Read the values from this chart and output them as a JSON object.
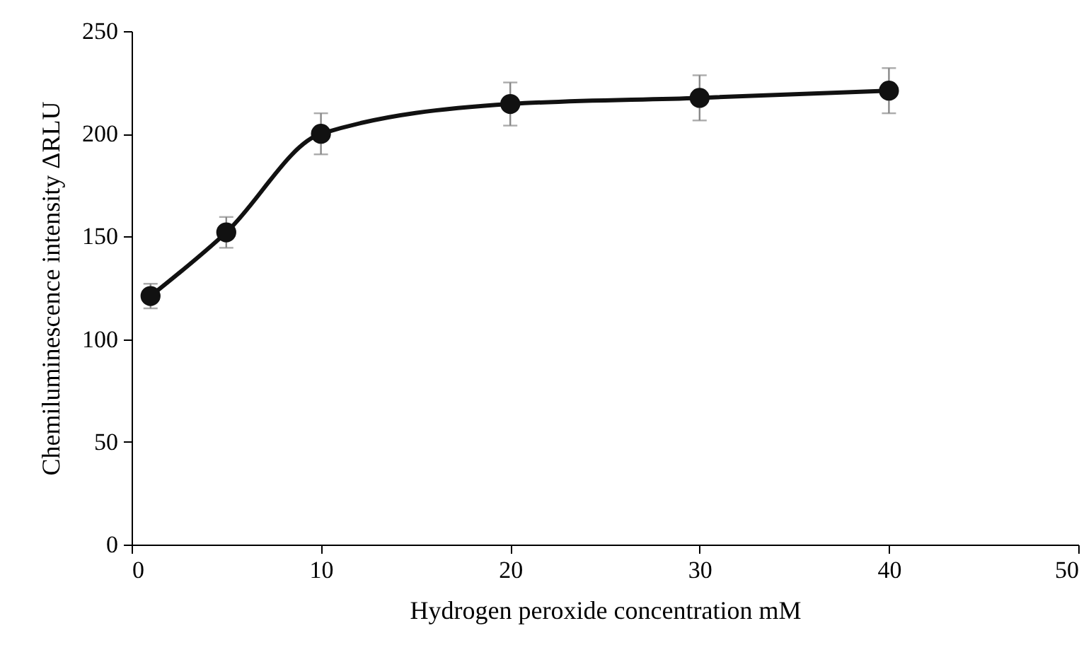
{
  "chart_data": {
    "type": "line",
    "xlabel": "Hydrogen peroxide concentration mM",
    "ylabel": "Chemiluminescence intensity ΔRLU",
    "x": [
      1,
      5,
      10,
      20,
      30,
      40
    ],
    "series": [
      {
        "color": "#111111",
        "values": [
          121,
          152,
          200,
          214.5,
          217.5,
          221
        ],
        "errors": [
          6,
          7.5,
          10,
          10.5,
          11,
          11
        ]
      }
    ],
    "xlim": [
      0,
      50
    ],
    "xticks": [
      0,
      10,
      20,
      30,
      40,
      50
    ],
    "ylim": [
      0,
      250
    ],
    "yticks": [
      0,
      50,
      100,
      150,
      200,
      250
    ],
    "marker": "circle",
    "line_style": "solid",
    "grid": false
  }
}
